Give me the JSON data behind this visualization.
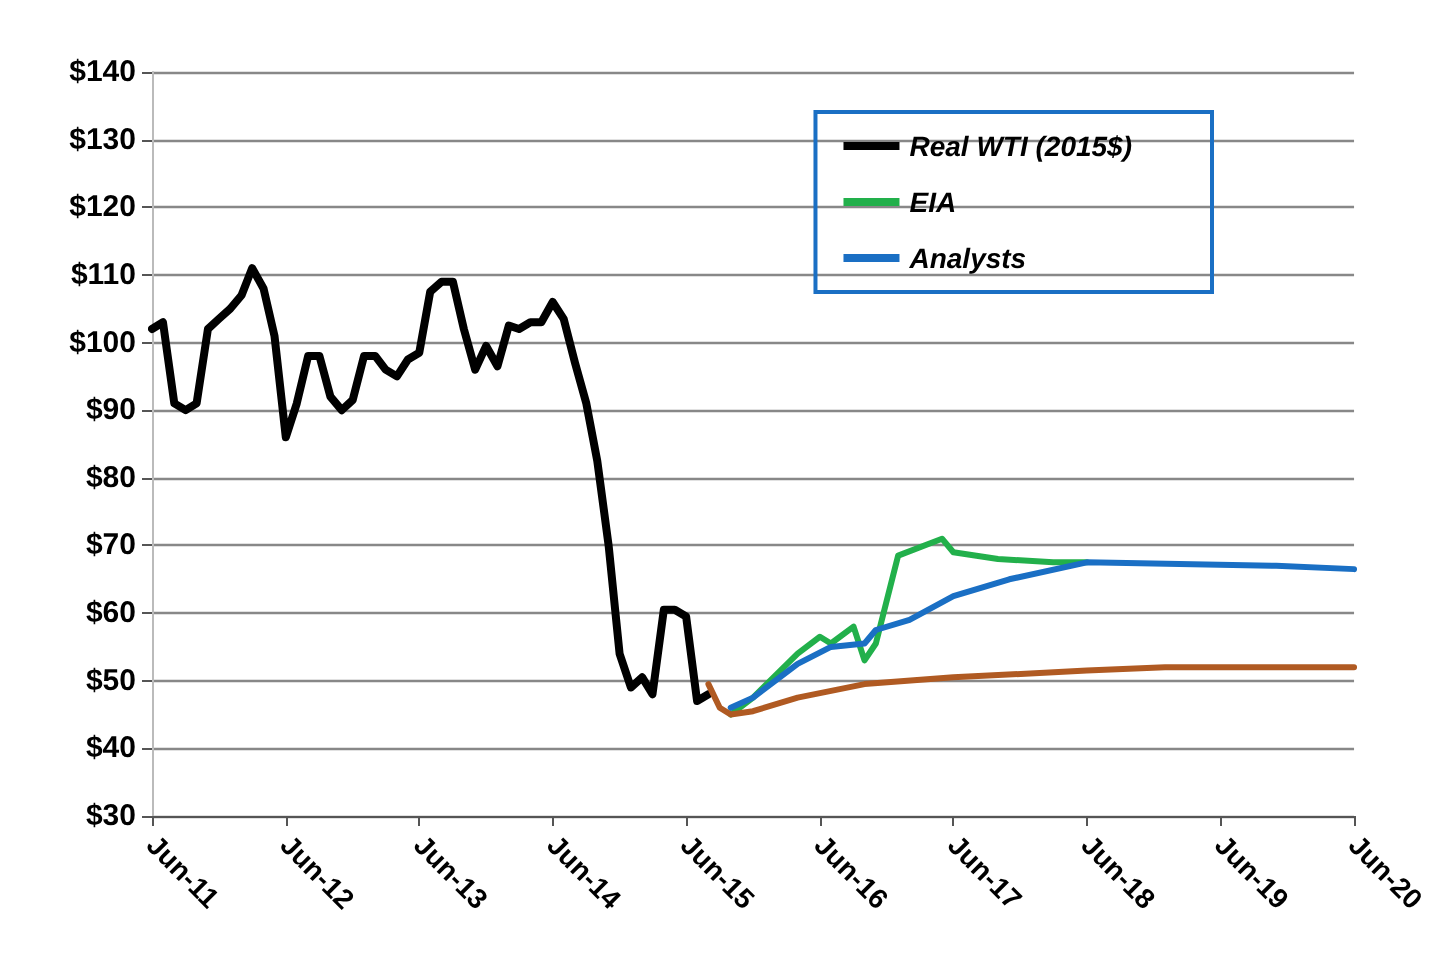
{
  "chart_data": {
    "type": "line",
    "xlim": [
      "2011-06",
      "2020-06"
    ],
    "xticks": [
      {
        "value": "2011-06",
        "label": "Jun-11"
      },
      {
        "value": "2012-06",
        "label": "Jun-12"
      },
      {
        "value": "2013-06",
        "label": "Jun-13"
      },
      {
        "value": "2014-06",
        "label": "Jun-14"
      },
      {
        "value": "2015-06",
        "label": "Jun-15"
      },
      {
        "value": "2016-06",
        "label": "Jun-16"
      },
      {
        "value": "2017-06",
        "label": "Jun-17"
      },
      {
        "value": "2018-06",
        "label": "Jun-18"
      },
      {
        "value": "2019-06",
        "label": "Jun-19"
      },
      {
        "value": "2020-06",
        "label": "Jun-20"
      }
    ],
    "ylim": [
      30,
      140
    ],
    "yticks": [
      {
        "value": 30,
        "label": "$30"
      },
      {
        "value": 40,
        "label": "$40"
      },
      {
        "value": 50,
        "label": "$50"
      },
      {
        "value": 60,
        "label": "$60"
      },
      {
        "value": 70,
        "label": "$70"
      },
      {
        "value": 80,
        "label": "$80"
      },
      {
        "value": 90,
        "label": "$90"
      },
      {
        "value": 100,
        "label": "$100"
      },
      {
        "value": 110,
        "label": "$110"
      },
      {
        "value": 120,
        "label": "$120"
      },
      {
        "value": 130,
        "label": "$130"
      },
      {
        "value": 140,
        "label": "$140"
      }
    ],
    "grid": "y",
    "legend": "top right",
    "marker": "none",
    "line_style": "solid",
    "series": [
      {
        "name": "Real WTI (2015$)",
        "color": "#000000",
        "x": [
          "2011-06",
          "2011-07",
          "2011-08",
          "2011-09",
          "2011-10",
          "2011-11",
          "2011-12",
          "2012-01",
          "2012-02",
          "2012-03",
          "2012-04",
          "2012-05",
          "2012-06",
          "2012-07",
          "2012-08",
          "2012-09",
          "2012-10",
          "2012-11",
          "2012-12",
          "2013-01",
          "2013-02",
          "2013-03",
          "2013-04",
          "2013-05",
          "2013-06",
          "2013-07",
          "2013-08",
          "2013-09",
          "2013-10",
          "2013-11",
          "2013-12",
          "2014-01",
          "2014-02",
          "2014-03",
          "2014-04",
          "2014-05",
          "2014-06",
          "2014-07",
          "2014-08",
          "2014-09",
          "2014-10",
          "2014-11",
          "2014-12",
          "2015-01",
          "2015-02",
          "2015-03",
          "2015-04",
          "2015-05",
          "2015-06",
          "2015-07",
          "2015-08"
        ],
        "values": [
          102,
          103,
          91,
          90,
          91,
          102,
          103.5,
          105,
          107,
          111,
          108,
          101,
          86,
          91,
          98,
          98,
          92,
          90,
          91.5,
          98,
          98,
          96,
          95,
          97.5,
          98.5,
          107.5,
          109,
          109,
          102,
          96,
          99.5,
          96.5,
          102.5,
          102,
          103,
          103,
          106,
          103.5,
          97,
          91,
          82.5,
          70,
          54,
          49,
          50.5,
          48,
          60.5,
          60.5,
          59.5,
          47,
          48
        ]
      },
      {
        "name": "EIA",
        "color": "#22b04b",
        "x": [
          "2015-10",
          "2015-12",
          "2016-04",
          "2016-06",
          "2016-07",
          "2016-09",
          "2016-10",
          "2016-11",
          "2017-01",
          "2017-05",
          "2017-06",
          "2017-10",
          "2018-03",
          "2018-06"
        ],
        "values": [
          45,
          47.5,
          54,
          56.5,
          55.5,
          58,
          53,
          55.5,
          68.5,
          71,
          69,
          68,
          67.5,
          67.5
        ]
      },
      {
        "name": "Analysts",
        "color": "#1a6fc4",
        "x": [
          "2015-10",
          "2015-12",
          "2016-04",
          "2016-07",
          "2016-10",
          "2016-11",
          "2017-02",
          "2017-06",
          "2017-11",
          "2018-06",
          "2019-11",
          "2020-06"
        ],
        "values": [
          46,
          47.5,
          52.5,
          55,
          55.5,
          57.5,
          59,
          62.5,
          65,
          67.5,
          67,
          66.5
        ]
      },
      {
        "color": "#b05a22",
        "x": [
          "2015-08",
          "2015-09",
          "2015-10",
          "2015-12",
          "2016-04",
          "2016-10",
          "2017-06",
          "2018-06",
          "2019-01",
          "2020-06"
        ],
        "values": [
          49.5,
          46,
          45,
          45.5,
          47.5,
          49.5,
          50.5,
          51.5,
          52,
          52
        ]
      }
    ]
  }
}
